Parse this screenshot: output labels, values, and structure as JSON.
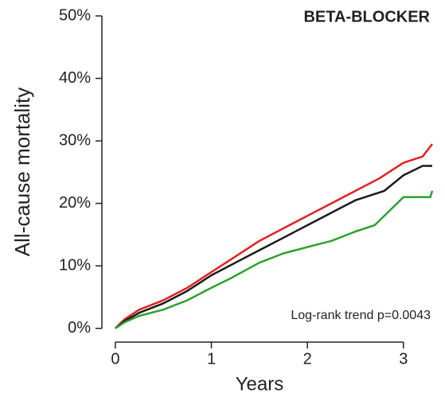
{
  "chart_data": {
    "type": "line",
    "title": "BETA-BLOCKER",
    "ylabel": "All-cause mortality",
    "xlabel": "Years",
    "annotation": "Log-rank trend p=0.0043",
    "xlim": [
      -0.14,
      3.35
    ],
    "xticks": [
      0,
      1,
      2,
      3
    ],
    "ylim": [
      -2.2,
      50
    ],
    "yticks": [
      {
        "value": 0,
        "label": "0%"
      },
      {
        "value": 10,
        "label": "10%"
      },
      {
        "value": 20,
        "label": "20%"
      },
      {
        "value": 30,
        "label": "30%"
      },
      {
        "value": 40,
        "label": "40%"
      },
      {
        "value": 50,
        "label": "50%"
      }
    ],
    "series": [
      {
        "color": "#e02020",
        "x": [
          0,
          0.1,
          0.25,
          0.5,
          0.75,
          1,
          1.25,
          1.5,
          1.75,
          2,
          2.25,
          2.5,
          2.75,
          3,
          3.2,
          3.3
        ],
        "values": [
          0,
          1.5,
          3,
          4.5,
          6.5,
          9,
          11.5,
          14,
          16,
          18,
          20,
          22,
          24,
          26.5,
          27.5,
          29.5
        ]
      },
      {
        "color": "#1a1a1a",
        "x": [
          0,
          0.1,
          0.25,
          0.5,
          0.75,
          1,
          1.25,
          1.5,
          1.75,
          2,
          2.25,
          2.5,
          2.8,
          3,
          3.2,
          3.3
        ],
        "values": [
          0,
          1.2,
          2.5,
          4,
          6,
          8.5,
          10.5,
          12.5,
          14.5,
          16.5,
          18.5,
          20.5,
          22,
          24.5,
          26,
          26
        ]
      },
      {
        "color": "#2ea02e",
        "x": [
          0,
          0.1,
          0.25,
          0.5,
          0.75,
          1,
          1.2,
          1.5,
          1.75,
          2,
          2.25,
          2.5,
          2.7,
          3,
          3.28,
          3.3
        ],
        "values": [
          0,
          1,
          2,
          3,
          4.5,
          6.5,
          8,
          10.5,
          12,
          13,
          14,
          15.5,
          16.5,
          21,
          21,
          22
        ]
      }
    ]
  }
}
